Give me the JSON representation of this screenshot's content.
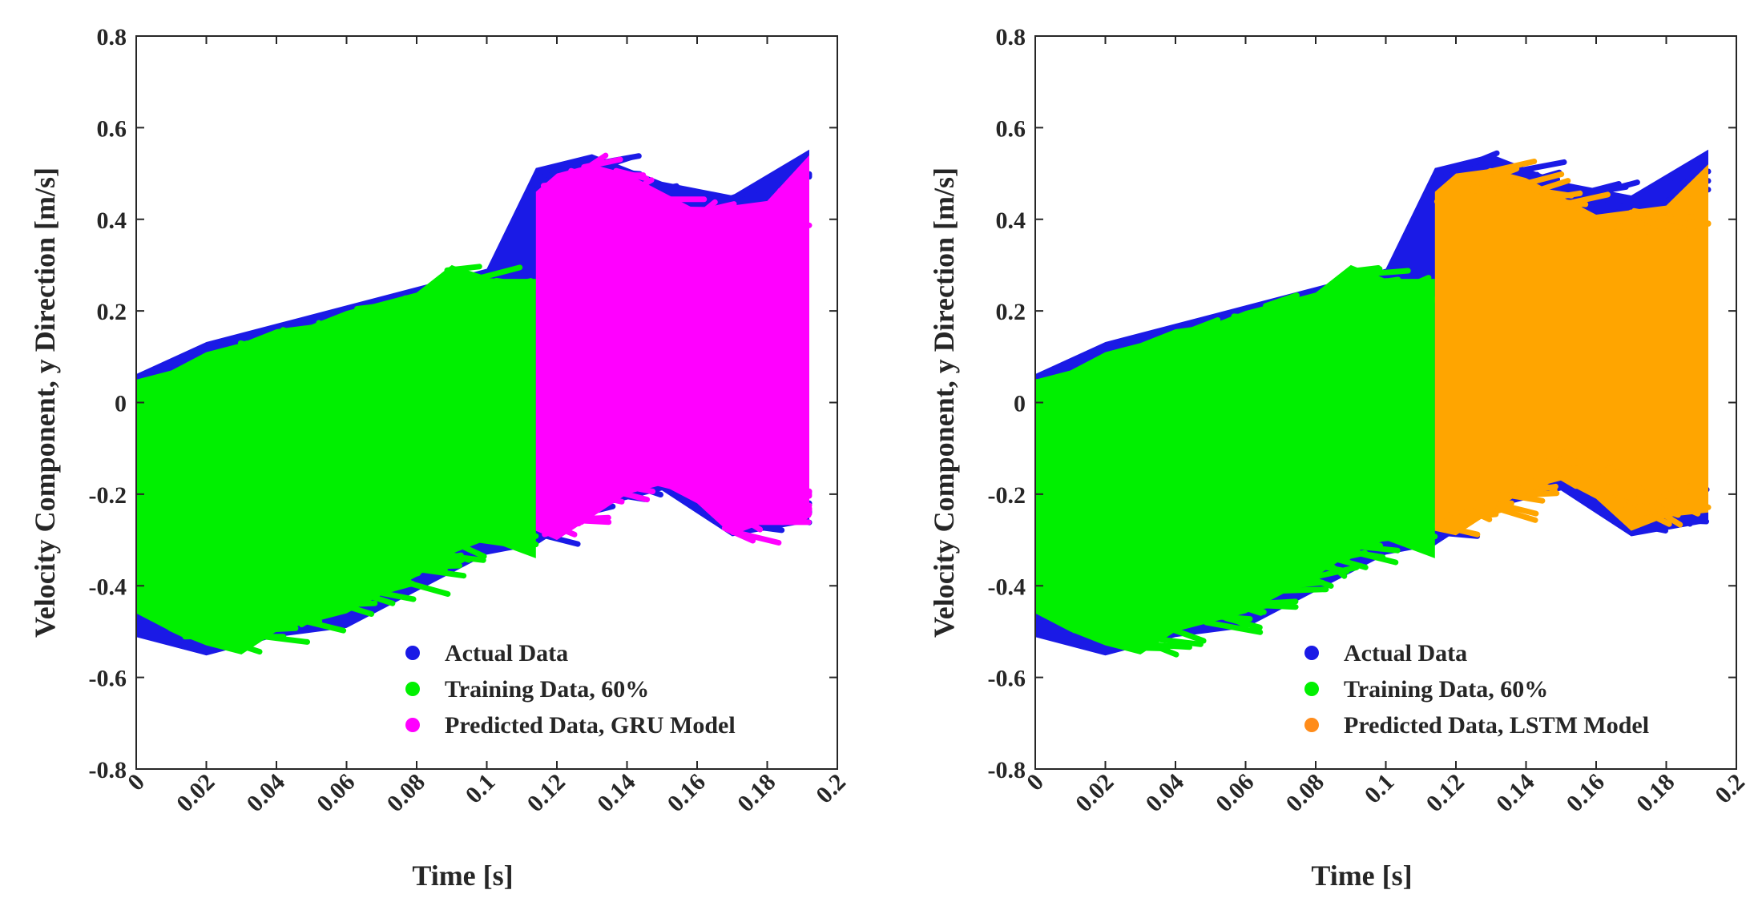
{
  "chart_data": [
    {
      "type": "scatter",
      "title": "",
      "xlabel": "Time [s]",
      "ylabel": "Velocity Component, y Direction [m/s]",
      "xlim": [
        0,
        0.2
      ],
      "ylim": [
        -0.8,
        0.8
      ],
      "xticks": [
        0,
        0.02,
        0.04,
        0.06,
        0.08,
        0.1,
        0.12,
        0.14,
        0.16,
        0.18,
        0.2
      ],
      "yticks": [
        -0.8,
        -0.6,
        -0.4,
        -0.2,
        0,
        0.2,
        0.4,
        0.6,
        0.8
      ],
      "xtick_labels": [
        "0",
        "0.02",
        "0.04",
        "0.06",
        "0.08",
        "0.1",
        "0.12",
        "0.14",
        "0.16",
        "0.18",
        "0.2"
      ],
      "ytick_labels": [
        "-0.8",
        "-0.6",
        "-0.4",
        "-0.2",
        "0",
        "0.2",
        "0.4",
        "0.6",
        "0.8"
      ],
      "legend_position": "bottom-right",
      "split_time": 0.114,
      "series": [
        {
          "name": "Actual Data",
          "color": "#1a1ae6",
          "x_range": [
            0,
            0.192
          ],
          "envelope": {
            "x": [
              0,
              0.02,
              0.04,
              0.06,
              0.08,
              0.1,
              0.114,
              0.13,
              0.15,
              0.17,
              0.192
            ],
            "upper": [
              0.05,
              0.12,
              0.16,
              0.2,
              0.24,
              0.28,
              0.5,
              0.53,
              0.47,
              0.44,
              0.54
            ],
            "lower": [
              -0.5,
              -0.54,
              -0.5,
              -0.48,
              -0.4,
              -0.32,
              -0.3,
              -0.22,
              -0.18,
              -0.28,
              -0.25
            ]
          }
        },
        {
          "name": "Training Data, 60%",
          "color": "#00f000",
          "x_range": [
            0,
            0.114
          ],
          "envelope": {
            "x": [
              0,
              0.01,
              0.02,
              0.03,
              0.04,
              0.05,
              0.06,
              0.07,
              0.08,
              0.09,
              0.1,
              0.114
            ],
            "upper": [
              0.05,
              0.07,
              0.11,
              0.13,
              0.16,
              0.17,
              0.2,
              0.22,
              0.24,
              0.3,
              0.27,
              0.27
            ],
            "lower": [
              -0.46,
              -0.5,
              -0.53,
              -0.55,
              -0.5,
              -0.48,
              -0.46,
              -0.42,
              -0.38,
              -0.33,
              -0.3,
              -0.34
            ]
          }
        },
        {
          "name": "Predicted Data, GRU Model",
          "color": "#ff00ff",
          "x_range": [
            0.114,
            0.192
          ],
          "envelope": {
            "x": [
              0.114,
              0.12,
              0.13,
              0.14,
              0.15,
              0.16,
              0.17,
              0.18,
              0.192
            ],
            "upper": [
              0.46,
              0.5,
              0.52,
              0.5,
              0.46,
              0.42,
              0.43,
              0.44,
              0.54
            ],
            "lower": [
              -0.28,
              -0.3,
              -0.25,
              -0.2,
              -0.18,
              -0.22,
              -0.29,
              -0.26,
              -0.25
            ]
          }
        }
      ]
    },
    {
      "type": "scatter",
      "title": "",
      "xlabel": "Time [s]",
      "ylabel": "Velocity Component, y Direction [m/s]",
      "xlim": [
        0,
        0.2
      ],
      "ylim": [
        -0.8,
        0.8
      ],
      "xticks": [
        0,
        0.02,
        0.04,
        0.06,
        0.08,
        0.1,
        0.12,
        0.14,
        0.16,
        0.18,
        0.2
      ],
      "yticks": [
        -0.8,
        -0.6,
        -0.4,
        -0.2,
        0,
        0.2,
        0.4,
        0.6,
        0.8
      ],
      "xtick_labels": [
        "0",
        "0.02",
        "0.04",
        "0.06",
        "0.08",
        "0.1",
        "0.12",
        "0.14",
        "0.16",
        "0.18",
        "0.2"
      ],
      "ytick_labels": [
        "-0.8",
        "-0.6",
        "-0.4",
        "-0.2",
        "0",
        "0.2",
        "0.4",
        "0.6",
        "0.8"
      ],
      "legend_position": "bottom-right",
      "split_time": 0.114,
      "series": [
        {
          "name": "Actual Data",
          "color": "#1a1ae6",
          "x_range": [
            0,
            0.192
          ],
          "envelope": {
            "x": [
              0,
              0.02,
              0.04,
              0.06,
              0.08,
              0.1,
              0.114,
              0.13,
              0.15,
              0.17,
              0.192
            ],
            "upper": [
              0.05,
              0.12,
              0.16,
              0.2,
              0.24,
              0.28,
              0.5,
              0.53,
              0.47,
              0.44,
              0.54
            ],
            "lower": [
              -0.5,
              -0.54,
              -0.5,
              -0.48,
              -0.4,
              -0.32,
              -0.3,
              -0.22,
              -0.18,
              -0.28,
              -0.25
            ]
          }
        },
        {
          "name": "Training Data, 60%",
          "color": "#00f000",
          "x_range": [
            0,
            0.114
          ],
          "envelope": {
            "x": [
              0,
              0.01,
              0.02,
              0.03,
              0.04,
              0.05,
              0.06,
              0.07,
              0.08,
              0.09,
              0.1,
              0.114
            ],
            "upper": [
              0.05,
              0.07,
              0.11,
              0.13,
              0.16,
              0.17,
              0.2,
              0.22,
              0.24,
              0.3,
              0.27,
              0.27
            ],
            "lower": [
              -0.46,
              -0.5,
              -0.53,
              -0.55,
              -0.5,
              -0.48,
              -0.46,
              -0.42,
              -0.38,
              -0.33,
              -0.3,
              -0.34
            ]
          }
        },
        {
          "name": "Predicted Data, LSTM Model",
          "color": "#ffa500",
          "x_range": [
            0.114,
            0.192
          ],
          "legend_color": "#ff8c1a",
          "envelope": {
            "x": [
              0.114,
              0.12,
              0.13,
              0.14,
              0.15,
              0.16,
              0.17,
              0.18,
              0.192
            ],
            "upper": [
              0.46,
              0.5,
              0.51,
              0.49,
              0.45,
              0.41,
              0.42,
              0.43,
              0.52
            ],
            "lower": [
              -0.28,
              -0.29,
              -0.24,
              -0.19,
              -0.17,
              -0.21,
              -0.28,
              -0.25,
              -0.24
            ]
          }
        }
      ]
    }
  ]
}
